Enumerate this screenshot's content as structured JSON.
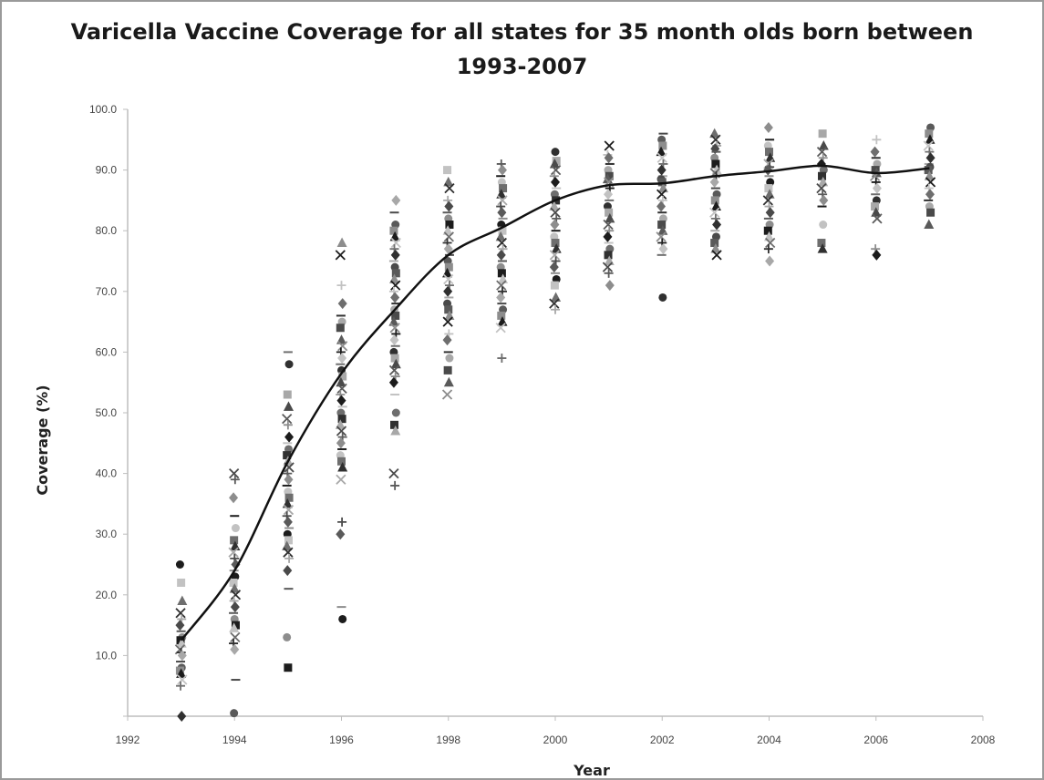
{
  "chart_data": {
    "type": "scatter",
    "title_line1": "Varicella Vaccine Coverage for all states for 35 month olds born between",
    "title_line2": "1993-2007",
    "xlabel": "Year",
    "ylabel": "Coverage (%)",
    "xlim": [
      1992,
      2008
    ],
    "ylim": [
      0,
      100
    ],
    "x_ticks": [
      "1992",
      "1994",
      "1996",
      "1998",
      "2000",
      "2002",
      "2004",
      "2006",
      "2008"
    ],
    "x_tick_values": [
      1992,
      1994,
      1996,
      1998,
      2000,
      2002,
      2004,
      2006,
      2008
    ],
    "y_ticks": [
      "",
      "10.0",
      "20.0",
      "30.0",
      "40.0",
      "50.0",
      "60.0",
      "70.0",
      "80.0",
      "90.0",
      "100.0"
    ],
    "y_tick_values": [
      0,
      10,
      20,
      30,
      40,
      50,
      60,
      70,
      80,
      90,
      100
    ],
    "grid": false,
    "legend": "none",
    "trend_line": {
      "x": [
        1993,
        1994,
        1995,
        1996,
        1997,
        1998,
        1999,
        2000,
        2001,
        2002,
        2003,
        2004,
        2005,
        2006,
        2007
      ],
      "y": [
        12.5,
        24,
        42,
        56.5,
        67,
        76,
        80.5,
        85,
        87.5,
        87.8,
        89,
        89.8,
        90.7,
        89.5,
        90.3
      ]
    },
    "points": [
      {
        "x": 1993,
        "y": [
          25,
          22,
          19,
          17,
          16,
          15,
          14,
          13,
          12.5,
          12,
          11,
          10.5,
          10,
          9,
          8,
          7.5,
          7,
          6,
          5,
          0
        ]
      },
      {
        "x": 1994,
        "y": [
          40,
          39,
          36,
          33,
          31,
          29,
          28,
          27,
          26,
          25,
          24,
          23,
          22,
          21,
          20,
          19,
          18,
          17,
          16,
          15,
          14.5,
          13,
          12,
          11,
          6,
          0.5
        ]
      },
      {
        "x": 1995,
        "y": [
          60,
          58,
          53,
          51,
          49,
          48,
          46,
          45,
          44,
          43,
          42,
          41,
          40,
          39,
          38,
          37,
          36,
          35,
          34,
          33,
          32,
          31,
          30,
          29,
          28,
          27,
          26,
          24,
          21,
          13,
          8
        ]
      },
      {
        "x": 1996,
        "y": [
          78,
          76,
          71,
          68,
          66,
          65,
          64,
          62,
          61,
          60,
          59,
          58,
          57,
          56,
          55,
          54,
          53,
          52,
          51,
          50,
          49,
          48,
          47,
          46,
          45,
          44,
          43,
          42,
          41,
          39,
          32,
          30,
          18,
          16
        ]
      },
      {
        "x": 1997,
        "y": [
          85,
          83,
          81,
          80,
          79,
          78,
          77,
          76,
          75,
          74,
          73,
          72,
          71,
          70,
          69,
          68,
          67,
          66,
          65,
          64,
          63,
          62,
          61,
          60,
          59,
          58,
          57,
          56,
          55,
          53,
          50,
          48,
          47,
          40,
          38
        ]
      },
      {
        "x": 1998,
        "y": [
          90,
          88,
          87,
          85,
          84,
          83,
          82,
          81,
          80,
          79,
          78,
          77,
          76,
          75,
          74,
          73,
          72,
          71,
          70,
          69,
          68,
          67,
          66,
          65,
          63,
          62,
          60,
          59,
          57,
          55,
          53
        ]
      },
      {
        "x": 1999,
        "y": [
          91,
          90,
          89,
          88,
          87,
          86,
          85,
          84,
          83,
          82,
          81,
          80,
          79,
          78,
          77,
          76,
          75,
          74,
          73,
          72,
          71,
          70,
          69,
          68,
          67,
          66,
          65,
          64,
          59
        ]
      },
      {
        "x": 2000,
        "y": [
          93,
          91.5,
          91,
          90,
          89,
          88,
          87,
          86,
          85,
          84,
          83,
          82,
          81,
          80,
          79,
          78,
          77,
          76,
          75,
          74,
          73,
          72,
          71,
          69,
          68,
          67
        ]
      },
      {
        "x": 2001,
        "y": [
          94,
          92.5,
          92,
          91,
          90,
          89,
          88.5,
          88,
          87,
          86,
          85,
          84,
          83,
          82,
          81,
          80,
          79,
          78,
          77,
          76,
          75,
          74,
          73,
          71
        ]
      },
      {
        "x": 2002,
        "y": [
          96,
          95,
          94,
          93,
          92,
          91,
          90,
          89,
          88.5,
          88,
          87,
          86,
          85,
          84,
          83,
          82,
          81,
          80,
          79,
          78,
          77,
          76,
          69
        ]
      },
      {
        "x": 2003,
        "y": [
          96,
          95,
          94,
          93.5,
          93,
          92,
          91,
          90,
          89.5,
          89,
          88,
          87,
          86,
          85,
          84,
          83,
          82,
          81,
          80,
          79,
          78,
          77,
          76
        ]
      },
      {
        "x": 2004,
        "y": [
          97,
          95,
          94,
          93,
          92,
          91,
          90.5,
          90,
          89,
          88,
          87,
          86,
          85,
          84,
          83,
          82,
          81,
          80,
          79,
          78,
          77,
          75
        ]
      },
      {
        "x": 2005,
        "y": [
          96,
          94,
          93,
          92,
          91,
          90.5,
          90,
          89,
          88,
          87,
          86,
          85,
          84,
          81,
          78,
          77
        ]
      },
      {
        "x": 2006,
        "y": [
          95,
          93,
          92,
          91,
          90,
          89.5,
          89,
          88,
          87,
          86,
          85,
          84,
          83,
          82,
          77,
          76
        ]
      },
      {
        "x": 2007,
        "y": [
          97,
          96,
          95,
          94,
          93,
          92,
          91,
          90.5,
          90,
          89,
          88,
          87,
          86,
          85,
          84,
          83,
          81
        ]
      }
    ]
  }
}
